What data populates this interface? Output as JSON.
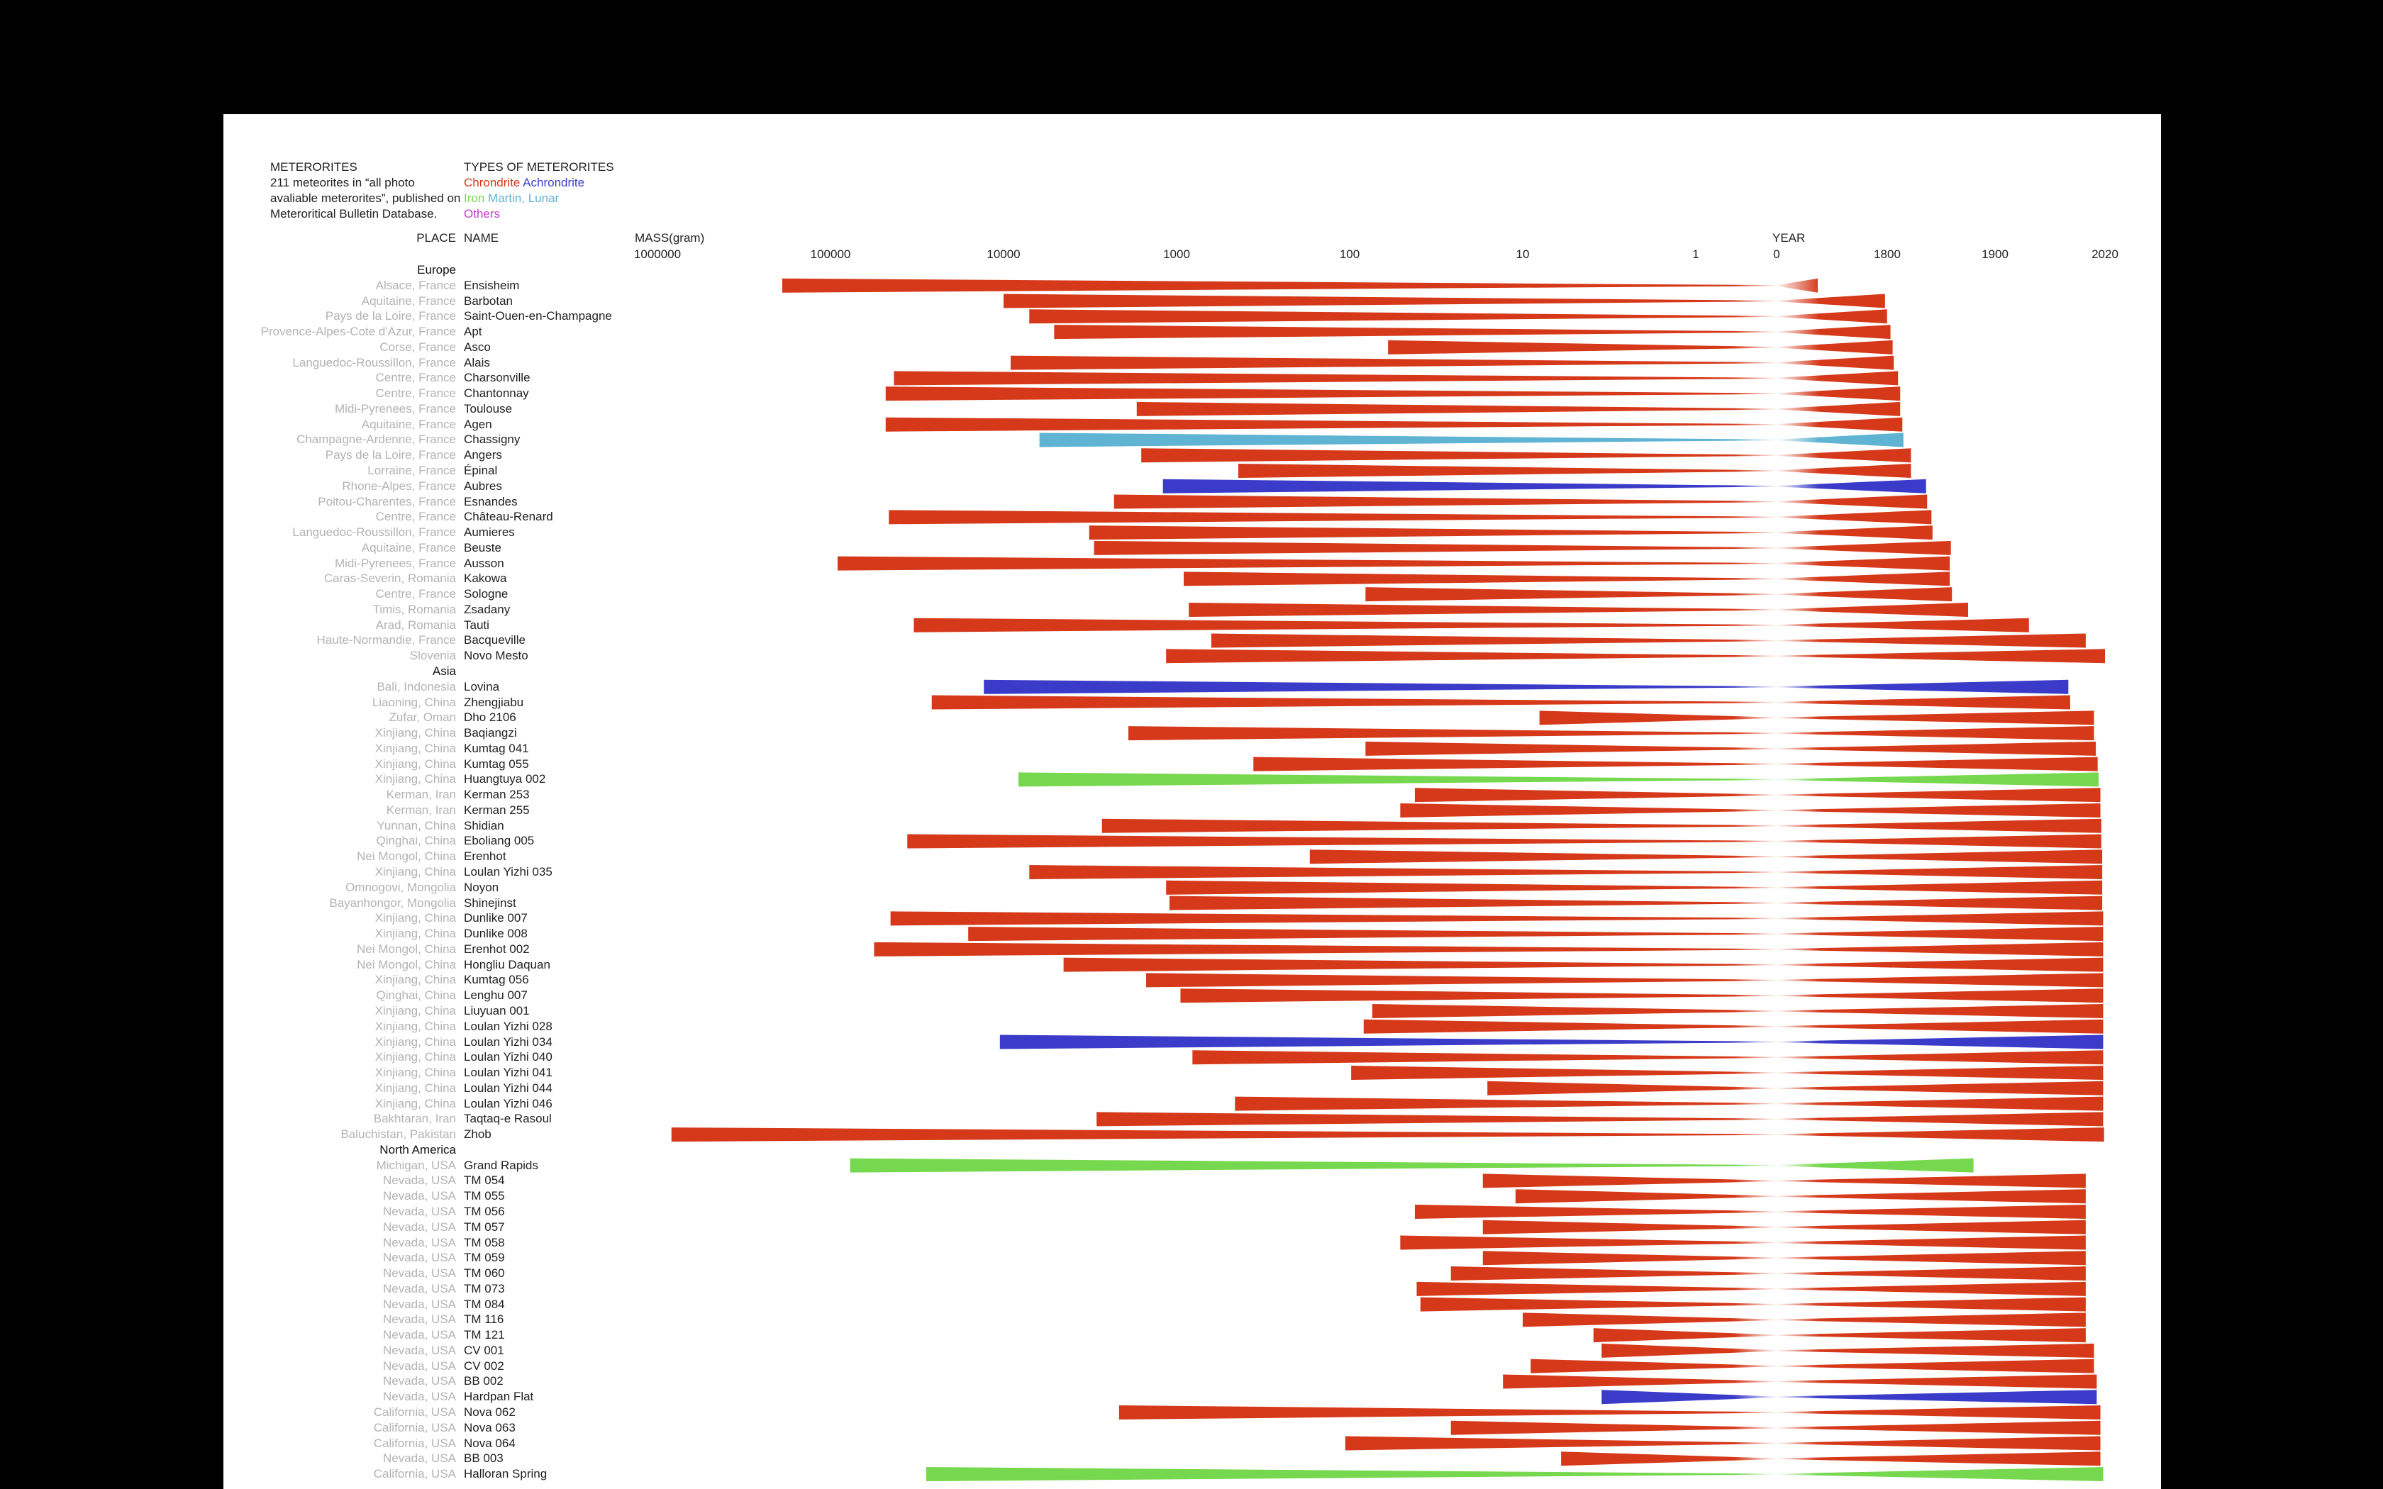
{
  "intro": {
    "title": "METERORITES",
    "lines": [
      "211 meteorites in “all photo",
      "avaliable meterorites”, published on",
      "Meteroritical Bulletin Database."
    ]
  },
  "legend": {
    "title": "TYPES OF METERORITES",
    "items": [
      {
        "label": "Chrondrite",
        "type": "chondrite"
      },
      {
        "label": "Achrondrite",
        "type": "achondrite"
      },
      {
        "label": "Iron",
        "type": "iron"
      },
      {
        "label": "Martin, Lunar",
        "type": "martian"
      },
      {
        "label": "Others",
        "type": "other"
      }
    ]
  },
  "colors": {
    "chondrite": "#d5391a",
    "achondrite": "#3b3bc9",
    "iron": "#76d84e",
    "martian": "#5fb3d3",
    "other": "#c93ad6"
  },
  "headers": {
    "place": "PLACE",
    "name": "NAME",
    "mass": "MASS(gram)",
    "year": "YEAR"
  },
  "chart_data": {
    "type": "bar",
    "mass_axis": {
      "label": "MASS(gram)",
      "scale": "log",
      "ticks": [
        1000000,
        100000,
        10000,
        1000,
        100,
        10,
        1
      ],
      "tick_labels": [
        "1000000",
        "100000",
        "10000",
        "1000",
        "100",
        "10",
        "1"
      ]
    },
    "year_axis": {
      "label": "YEAR",
      "ticks": [
        0,
        1800,
        1900,
        2020
      ],
      "tick_labels": [
        "0",
        "1800",
        "1900",
        "2020"
      ]
    },
    "groups": [
      {
        "region": "Europe",
        "items": [
          {
            "place": "Alsace, France",
            "name": "Ensisheim",
            "type": "chondrite",
            "mass": 190000,
            "year": 1492
          },
          {
            "place": "Aquitaine, France",
            "name": "Barbotan",
            "type": "chondrite",
            "mass": 10000,
            "year": 1790
          },
          {
            "place": "Pays de la Loire, France",
            "name": "Saint-Ouen-en-Champagne",
            "type": "chondrite",
            "mass": 7100,
            "year": 1799
          },
          {
            "place": "Provence-Alpes-Cote d'Azur, France",
            "name": "Apt",
            "type": "chondrite",
            "mass": 5100,
            "year": 1803
          },
          {
            "place": "Corse, France",
            "name": "Asco",
            "type": "chondrite",
            "mass": 60,
            "year": 1805
          },
          {
            "place": "Languedoc-Roussillon, France",
            "name": "Alais",
            "type": "chondrite",
            "mass": 9100,
            "year": 1806
          },
          {
            "place": "Centre, France",
            "name": "Charsonville",
            "type": "chondrite",
            "mass": 43000,
            "year": 1810
          },
          {
            "place": "Centre, France",
            "name": "Chantonnay",
            "type": "chondrite",
            "mass": 48000,
            "year": 1812
          },
          {
            "place": "Midi-Pyrenees, France",
            "name": "Toulouse",
            "type": "chondrite",
            "mass": 1700,
            "year": 1812
          },
          {
            "place": "Aquitaine, France",
            "name": "Agen",
            "type": "chondrite",
            "mass": 48000,
            "year": 1814
          },
          {
            "place": "Champagne-Ardenne, France",
            "name": "Chassigny",
            "type": "martian",
            "mass": 6200,
            "year": 1815
          },
          {
            "place": "Pays de la Loire, France",
            "name": "Angers",
            "type": "chondrite",
            "mass": 1600,
            "year": 1822
          },
          {
            "place": "Lorraine, France",
            "name": "Épinal",
            "type": "chondrite",
            "mass": 440,
            "year": 1822
          },
          {
            "place": "Rhone-Alpes, France",
            "name": "Aubres",
            "type": "achondrite",
            "mass": 1200,
            "year": 1836
          },
          {
            "place": "Poitou-Charentes, France",
            "name": "Esnandes",
            "type": "chondrite",
            "mass": 2300,
            "year": 1837
          },
          {
            "place": "Centre, France",
            "name": "Château-Renard",
            "type": "chondrite",
            "mass": 46000,
            "year": 1841
          },
          {
            "place": "Languedoc-Roussillon, France",
            "name": "Aumieres",
            "type": "chondrite",
            "mass": 3200,
            "year": 1842
          },
          {
            "place": "Aquitaine, France",
            "name": "Beuste",
            "type": "chondrite",
            "mass": 3000,
            "year": 1859
          },
          {
            "place": "Midi-Pyrenees, France",
            "name": "Ausson",
            "type": "chondrite",
            "mass": 91000,
            "year": 1858
          },
          {
            "place": "Caras-Severin, Romania",
            "name": "Kakowa",
            "type": "chondrite",
            "mass": 910,
            "year": 1858
          },
          {
            "place": "Centre, France",
            "name": "Sologne",
            "type": "chondrite",
            "mass": 81,
            "year": 1860
          },
          {
            "place": "Timis, Romania",
            "name": "Zsadany",
            "type": "chondrite",
            "mass": 850,
            "year": 1875
          },
          {
            "place": "Arad, Romania",
            "name": "Tauti",
            "type": "chondrite",
            "mass": 33000,
            "year": 1937
          },
          {
            "place": "Haute-Normandie, France",
            "name": "Bacqueville",
            "type": "chondrite",
            "mass": 630,
            "year": 1999
          },
          {
            "place": "Slovenia",
            "name": "Novo Mesto",
            "type": "chondrite",
            "mass": 1150,
            "year": 2020
          }
        ]
      },
      {
        "region": "Asia",
        "items": [
          {
            "place": "Bali, Indonesia",
            "name": "Lovina",
            "type": "achondrite",
            "mass": 13000,
            "year": 1980
          },
          {
            "place": "Liaoning, China",
            "name": "Zhengjiabu",
            "type": "chondrite",
            "mass": 26000,
            "year": 1982
          },
          {
            "place": "Zufar, Oman",
            "name": "Dho 2106",
            "type": "chondrite",
            "mass": 8,
            "year": 2008
          },
          {
            "place": "Xinjiang, China",
            "name": "Baqiangzi",
            "type": "chondrite",
            "mass": 1900,
            "year": 2008
          },
          {
            "place": "Xinjiang, China",
            "name": "Kumtag 041",
            "type": "chondrite",
            "mass": 81,
            "year": 2010
          },
          {
            "place": "Xinjiang, China",
            "name": "Kumtag 055",
            "type": "chondrite",
            "mass": 360,
            "year": 2012
          },
          {
            "place": "Xinjiang, China",
            "name": "Huangtuya 002",
            "type": "iron",
            "mass": 8200,
            "year": 2013
          },
          {
            "place": "Kerman, Iran",
            "name": "Kerman 253",
            "type": "chondrite",
            "mass": 42,
            "year": 2015
          },
          {
            "place": "Kerman, Iran",
            "name": "Kerman 255",
            "type": "chondrite",
            "mass": 51,
            "year": 2015
          },
          {
            "place": "Yunnan, China",
            "name": "Shidian",
            "type": "chondrite",
            "mass": 2700,
            "year": 2016
          },
          {
            "place": "Qinghai, China",
            "name": "Eboliang 005",
            "type": "chondrite",
            "mass": 36000,
            "year": 2016
          },
          {
            "place": "Nei Mongol, China",
            "name": "Erenhot",
            "type": "chondrite",
            "mass": 170,
            "year": 2017
          },
          {
            "place": "Xinjiang, China",
            "name": "Loulan Yizhi 035",
            "type": "chondrite",
            "mass": 7100,
            "year": 2017
          },
          {
            "place": "Omnogovi, Mongolia",
            "name": "Noyon",
            "type": "chondrite",
            "mass": 1150,
            "year": 2017
          },
          {
            "place": "Bayanhongor, Mongolia",
            "name": "Shinejinst",
            "type": "chondrite",
            "mass": 1100,
            "year": 2017
          },
          {
            "place": "Xinjiang, China",
            "name": "Dunlike 007",
            "type": "chondrite",
            "mass": 45000,
            "year": 2018
          },
          {
            "place": "Xinjiang, China",
            "name": "Dunlike 008",
            "type": "chondrite",
            "mass": 16000,
            "year": 2018
          },
          {
            "place": "Nei Mongol, China",
            "name": "Erenhot 002",
            "type": "chondrite",
            "mass": 56000,
            "year": 2018
          },
          {
            "place": "Nei Mongol, China",
            "name": "Hongliu Daquan",
            "type": "chondrite",
            "mass": 4500,
            "year": 2018
          },
          {
            "place": "Xinjiang, China",
            "name": "Kumtag 056",
            "type": "chondrite",
            "mass": 1500,
            "year": 2018
          },
          {
            "place": "Qinghai, China",
            "name": "Lenghu 007",
            "type": "chondrite",
            "mass": 950,
            "year": 2018
          },
          {
            "place": "Xinjiang, China",
            "name": "Liuyuan 001",
            "type": "chondrite",
            "mass": 74,
            "year": 2018
          },
          {
            "place": "Xinjiang, China",
            "name": "Loulan Yizhi 028",
            "type": "chondrite",
            "mass": 83,
            "year": 2018
          },
          {
            "place": "Xinjiang, China",
            "name": "Loulan Yizhi 034",
            "type": "achondrite",
            "mass": 10500,
            "year": 2018
          },
          {
            "place": "Xinjiang, China",
            "name": "Loulan Yizhi 040",
            "type": "chondrite",
            "mass": 810,
            "year": 2018
          },
          {
            "place": "Xinjiang, China",
            "name": "Loulan Yizhi 041",
            "type": "chondrite",
            "mass": 98,
            "year": 2018
          },
          {
            "place": "Xinjiang, China",
            "name": "Loulan Yizhi 044",
            "type": "chondrite",
            "mass": 16,
            "year": 2018
          },
          {
            "place": "Xinjiang, China",
            "name": "Loulan Yizhi 046",
            "type": "chondrite",
            "mass": 460,
            "year": 2018
          },
          {
            "place": "Bakhtaran, Iran",
            "name": "Taqtaq-e Rasoul",
            "type": "chondrite",
            "mass": 2900,
            "year": 2018
          },
          {
            "place": "Baluchistan, Pakistan",
            "name": "Zhob",
            "type": "chondrite",
            "mass": 830000,
            "year": 2019
          }
        ]
      },
      {
        "region": "North America",
        "items": [
          {
            "place": "Michigan, USA",
            "name": "Grand Rapids",
            "type": "iron",
            "mass": 77000,
            "year": 1880
          },
          {
            "place": "Nevada, USA",
            "name": "TM 054",
            "type": "chondrite",
            "mass": 17,
            "year": 1999
          },
          {
            "place": "Nevada, USA",
            "name": "TM 055",
            "type": "chondrite",
            "mass": 11,
            "year": 1999
          },
          {
            "place": "Nevada, USA",
            "name": "TM 056",
            "type": "chondrite",
            "mass": 42,
            "year": 1999
          },
          {
            "place": "Nevada, USA",
            "name": "TM 057",
            "type": "chondrite",
            "mass": 17,
            "year": 1999
          },
          {
            "place": "Nevada, USA",
            "name": "TM 058",
            "type": "chondrite",
            "mass": 51,
            "year": 1999
          },
          {
            "place": "Nevada, USA",
            "name": "TM 059",
            "type": "chondrite",
            "mass": 17,
            "year": 1999
          },
          {
            "place": "Nevada, USA",
            "name": "TM 060",
            "type": "chondrite",
            "mass": 26,
            "year": 1999
          },
          {
            "place": "Nevada, USA",
            "name": "TM 073",
            "type": "chondrite",
            "mass": 41,
            "year": 1999
          },
          {
            "place": "Nevada, USA",
            "name": "TM 084",
            "type": "chondrite",
            "mass": 39,
            "year": 1999
          },
          {
            "place": "Nevada, USA",
            "name": "TM 116",
            "type": "chondrite",
            "mass": 10,
            "year": 1999
          },
          {
            "place": "Nevada, USA",
            "name": "TM 121",
            "type": "chondrite",
            "mass": 3.9,
            "year": 1999
          },
          {
            "place": "Nevada, USA",
            "name": "CV 001",
            "type": "chondrite",
            "mass": 3.5,
            "year": 2008
          },
          {
            "place": "Nevada, USA",
            "name": "CV 002",
            "type": "chondrite",
            "mass": 9,
            "year": 2008
          },
          {
            "place": "Nevada, USA",
            "name": "BB 002",
            "type": "chondrite",
            "mass": 13,
            "year": 2011
          },
          {
            "place": "Nevada, USA",
            "name": "Hardpan Flat",
            "type": "achondrite",
            "mass": 3.5,
            "year": 2011
          },
          {
            "place": "California, USA",
            "name": "Nova 062",
            "type": "chondrite",
            "mass": 2150,
            "year": 2015
          },
          {
            "place": "California, USA",
            "name": "Nova 063",
            "type": "chondrite",
            "mass": 26,
            "year": 2015
          },
          {
            "place": "California, USA",
            "name": "Nova 064",
            "type": "chondrite",
            "mass": 106,
            "year": 2015
          },
          {
            "place": "Nevada, USA",
            "name": "BB 003",
            "type": "chondrite",
            "mass": 6,
            "year": 2015
          },
          {
            "place": "California, USA",
            "name": "Halloran Spring",
            "type": "iron",
            "mass": 28000,
            "year": 2018
          }
        ]
      }
    ]
  }
}
